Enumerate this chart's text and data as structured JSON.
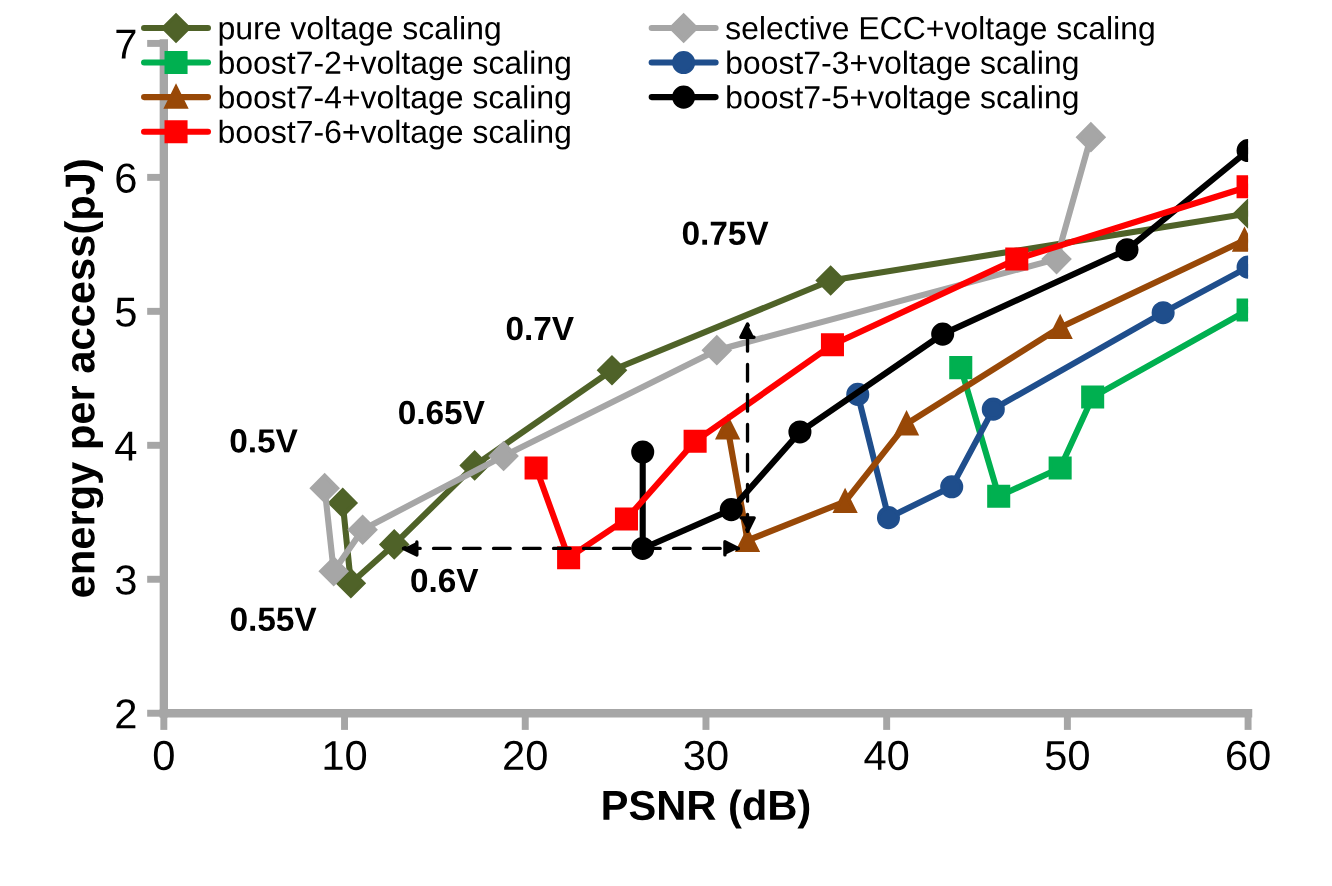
{
  "chart_data": {
    "type": "line",
    "xlabel": "PSNR (dB)",
    "ylabel": "energy per access(pJ)",
    "xlim": [
      0,
      60
    ],
    "xticks": [
      0,
      10,
      20,
      30,
      40,
      50,
      60
    ],
    "ylim": [
      2,
      7
    ],
    "yticks": [
      2,
      3,
      4,
      5,
      6,
      7
    ],
    "grid": false,
    "legend": "top left",
    "series": [
      {
        "name": "pure voltage scaling",
        "color": "#4f6228",
        "marker": "diamond",
        "x": [
          9.9,
          10.35,
          12.75,
          17.2,
          24.8,
          36.9,
          60
        ],
        "values": [
          3.57,
          2.97,
          3.26,
          3.85,
          4.56,
          5.23,
          5.73
        ]
      },
      {
        "name": "selective ECC+voltage scaling",
        "color": "#a6a6a6",
        "marker": "diamond",
        "x": [
          8.9,
          9.4,
          11.0,
          18.8,
          30.6,
          49.4,
          51.3
        ],
        "values": [
          3.68,
          3.06,
          3.37,
          3.92,
          4.71,
          5.39,
          6.3
        ]
      },
      {
        "name": "boost7-2+voltage scaling",
        "color": "#00b050",
        "marker": "square",
        "x": [
          44.1,
          46.2,
          49.6,
          51.4,
          60
        ],
        "values": [
          4.58,
          3.62,
          3.83,
          4.36,
          5.01
        ]
      },
      {
        "name": "boost7-3+voltage scaling",
        "color": "#1f4e8c",
        "marker": "circle",
        "x": [
          38.4,
          40.1,
          43.6,
          45.9,
          55.3,
          60
        ],
        "values": [
          4.38,
          3.46,
          3.69,
          4.27,
          4.99,
          5.33
        ]
      },
      {
        "name": "boost7-4+voltage scaling",
        "color": "#984807",
        "marker": "triangle",
        "x": [
          31.2,
          32.3,
          37.7,
          41.1,
          49.6,
          59.8
        ],
        "values": [
          4.13,
          3.29,
          3.58,
          4.16,
          4.88,
          5.53
        ]
      },
      {
        "name": "boost7-5+voltage scaling",
        "color": "#000000",
        "marker": "circle",
        "x": [
          26.5,
          26.5,
          31.4,
          35.2,
          43.1,
          53.3,
          60
        ],
        "values": [
          3.95,
          3.23,
          3.52,
          4.1,
          4.83,
          5.46,
          6.2
        ]
      },
      {
        "name": "boost7-6+voltage scaling",
        "color": "#ff0000",
        "marker": "square",
        "x": [
          20.6,
          22.4,
          25.6,
          29.4,
          37.0,
          47.2,
          60
        ],
        "values": [
          3.83,
          3.16,
          3.45,
          4.03,
          4.75,
          5.39,
          5.93
        ]
      }
    ],
    "annotations": [
      {
        "text": "0.5V",
        "x": 8.9,
        "y": 3.68
      },
      {
        "text": "0.55V",
        "x": 10.35,
        "y": 2.97
      },
      {
        "text": "0.6V",
        "x": 12.75,
        "y": 3.26
      },
      {
        "text": "0.65V",
        "x": 17.2,
        "y": 3.85
      },
      {
        "text": "0.7V",
        "x": 24.8,
        "y": 4.56
      },
      {
        "text": "0.75V",
        "x": 36.9,
        "y": 5.23
      }
    ]
  }
}
